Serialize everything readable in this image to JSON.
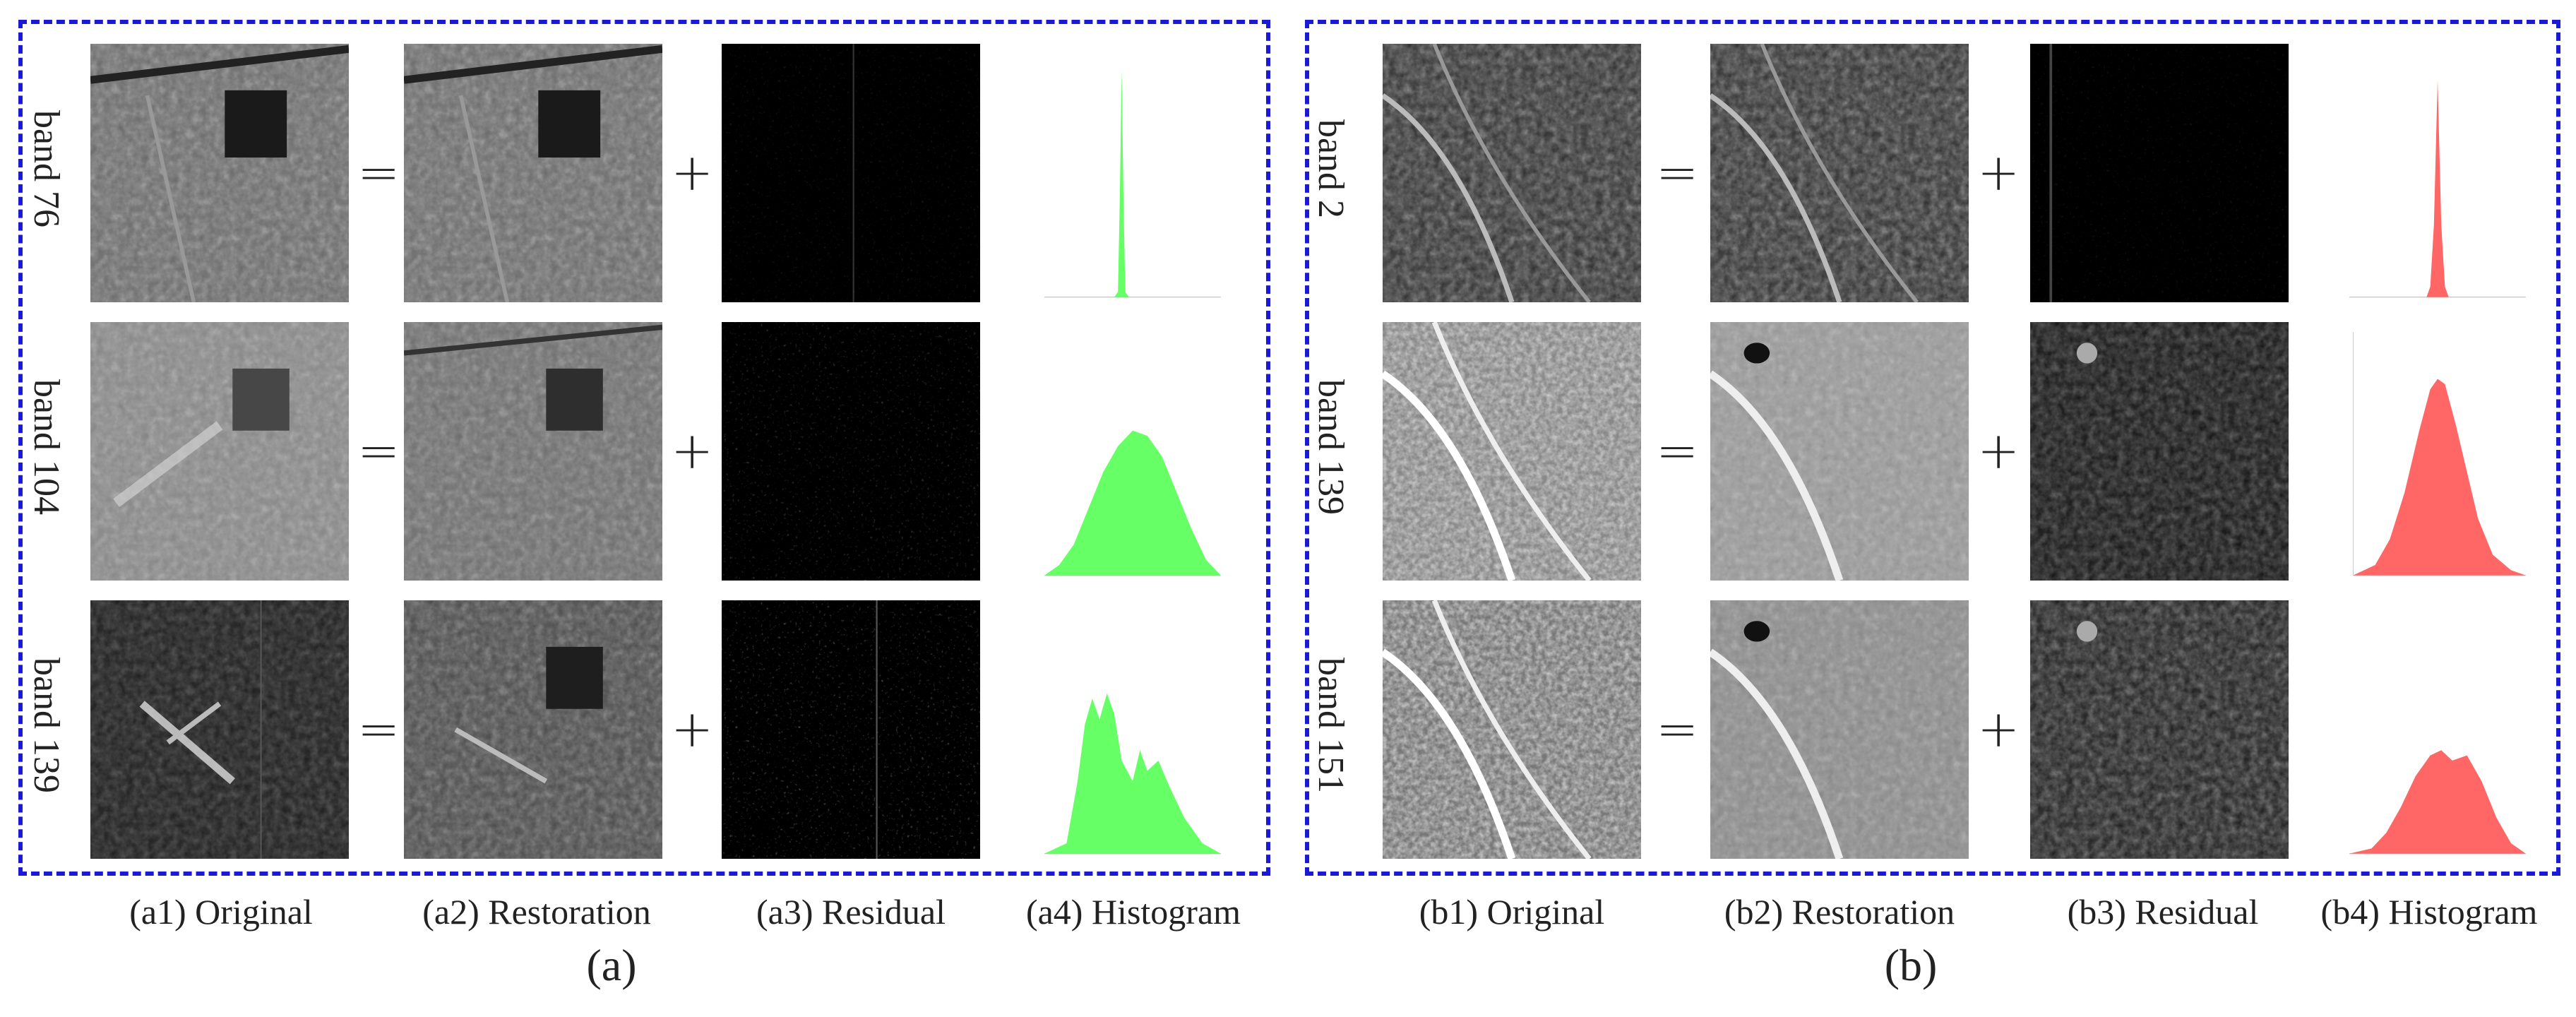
{
  "panels": {
    "a": {
      "letter": "(a)",
      "hist_color": "#66ff66",
      "rows": [
        {
          "label": "band 76"
        },
        {
          "label": "band 104"
        },
        {
          "label": "band 139"
        }
      ],
      "captions": [
        "(a1) Original",
        "(a2) Restoration",
        "(a3) Residual",
        "(a4) Histogram"
      ]
    },
    "b": {
      "letter": "(b)",
      "hist_color": "#ff6666",
      "rows": [
        {
          "label": "band 2"
        },
        {
          "label": "band 139"
        },
        {
          "label": "band 151"
        }
      ],
      "captions": [
        "(b1) Original",
        "(b2) Restoration",
        "(b3) Residual",
        "(b4) Histogram"
      ]
    }
  },
  "operators": {
    "equals": "=",
    "plus": "+"
  },
  "colors": {
    "frame": "#1a1ad6",
    "hist_a": "#66ff66",
    "hist_b": "#ff6666"
  }
}
